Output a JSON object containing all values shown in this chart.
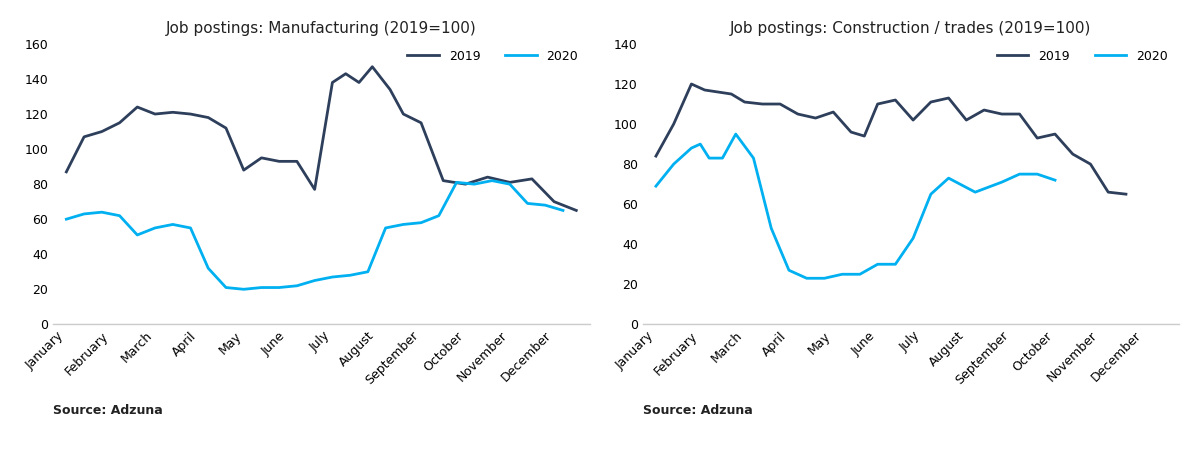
{
  "months": [
    "January",
    "February",
    "March",
    "April",
    "May",
    "June",
    "July",
    "August",
    "September",
    "October",
    "November",
    "December"
  ],
  "mfg_2019": [
    87,
    107,
    110,
    124,
    118,
    121,
    120,
    119,
    88,
    95,
    93,
    77,
    143,
    147,
    134,
    120,
    115,
    82,
    80,
    80,
    83,
    81,
    69,
    65
  ],
  "mfg_2020": [
    60,
    63,
    64,
    62,
    51,
    57,
    57,
    55,
    32,
    21,
    20,
    21,
    21,
    22,
    25,
    27,
    28,
    55,
    57,
    58,
    62,
    81,
    80,
    70,
    68
  ],
  "con_2019": [
    84,
    100,
    120,
    117,
    116,
    111,
    110,
    110,
    105,
    103,
    106,
    96,
    110,
    112,
    102,
    111,
    113,
    102,
    107,
    105,
    93,
    95,
    85,
    66
  ],
  "con_2020": [
    69,
    80,
    88,
    90,
    83,
    83,
    95,
    48,
    27,
    23,
    23,
    25,
    25,
    30,
    30,
    43,
    65,
    73,
    66,
    71,
    75,
    75
  ],
  "title_mfg": "Job postings: Manufacturing (2019=100)",
  "title_con": "Job postings: Construction / trades (2019=100)",
  "source_text": "Source: Adzuna",
  "color_2019": "#2e3f5c",
  "color_2020": "#00b0f0",
  "ylim_mfg": [
    0,
    160
  ],
  "ylim_con": [
    0,
    140
  ],
  "yticks_mfg": [
    0,
    20,
    40,
    60,
    80,
    100,
    120,
    140,
    160
  ],
  "yticks_con": [
    0,
    20,
    40,
    60,
    80,
    100,
    120,
    140
  ]
}
